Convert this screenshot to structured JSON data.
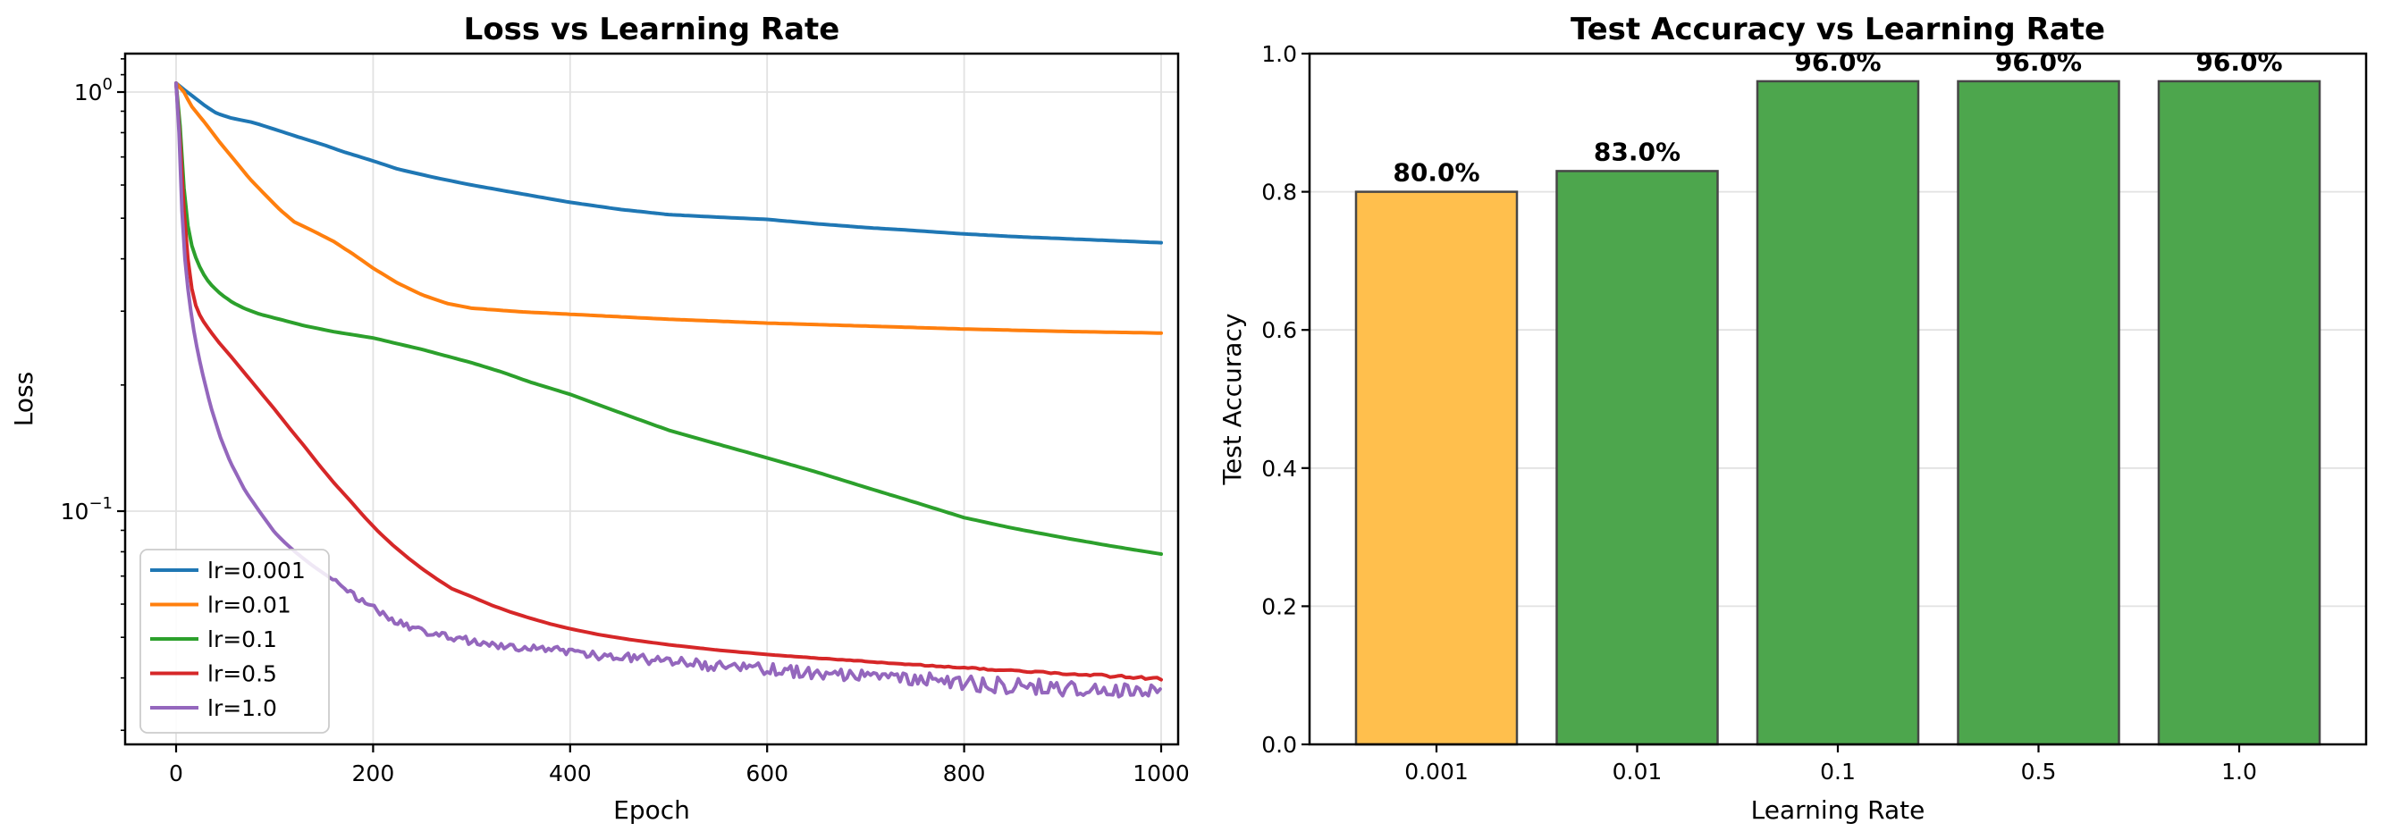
{
  "meta": {
    "background": "#ffffff",
    "text_color": "#000000",
    "grid_color": "#e2e2e2",
    "spine_color": "#000000",
    "legend_border_color": "#cccccc"
  },
  "chart_data": [
    {
      "type": "line",
      "title": "Loss vs Learning Rate",
      "xlabel": "Epoch",
      "ylabel": "Loss",
      "yscale": "log",
      "xlim": [
        -52,
        1017
      ],
      "ylim": [
        0.0277,
        1.224
      ],
      "xticks": [
        0,
        200,
        400,
        600,
        800,
        1000
      ],
      "xtick_labels": [
        "0",
        "200",
        "400",
        "600",
        "800",
        "1000"
      ],
      "yticks": [
        {
          "value": 1.0,
          "base": "10",
          "exp": "0"
        },
        {
          "value": 0.1,
          "base": "10",
          "exp": "−1"
        }
      ],
      "grid": true,
      "legend": {
        "position": "lower-left"
      },
      "series": [
        {
          "name": "lr=0.001",
          "color": "#1f77b4",
          "points": [
            [
              0,
              1.05
            ],
            [
              10,
              1.005
            ],
            [
              20,
              0.965
            ],
            [
              30,
              0.925
            ],
            [
              41,
              0.89
            ],
            [
              55,
              0.868
            ],
            [
              78,
              0.846
            ],
            [
              100,
              0.815
            ],
            [
              125,
              0.78
            ],
            [
              150,
              0.748
            ],
            [
              170,
              0.72
            ],
            [
              200,
              0.685
            ],
            [
              225,
              0.655
            ],
            [
              260,
              0.627
            ],
            [
              300,
              0.6
            ],
            [
              350,
              0.572
            ],
            [
              397,
              0.547
            ],
            [
              450,
              0.525
            ],
            [
              500,
              0.51
            ],
            [
              550,
              0.503
            ],
            [
              599,
              0.497
            ],
            [
              650,
              0.485
            ],
            [
              700,
              0.475
            ],
            [
              745,
              0.468
            ],
            [
              791,
              0.46
            ],
            [
              850,
              0.452
            ],
            [
              900,
              0.447
            ],
            [
              950,
              0.442
            ],
            [
              1000,
              0.437
            ]
          ]
        },
        {
          "name": "lr=0.01",
          "color": "#ff7f0e",
          "points": [
            [
              0,
              1.05
            ],
            [
              8,
              1.0
            ],
            [
              15,
              0.93
            ],
            [
              30,
              0.84
            ],
            [
              45,
              0.755
            ],
            [
              60,
              0.685
            ],
            [
              75,
              0.62
            ],
            [
              90,
              0.57
            ],
            [
              105,
              0.525
            ],
            [
              120,
              0.49
            ],
            [
              140,
              0.465
            ],
            [
              160,
              0.44
            ],
            [
              180,
              0.41
            ],
            [
              200,
              0.38
            ],
            [
              225,
              0.35
            ],
            [
              250,
              0.328
            ],
            [
              275,
              0.313
            ],
            [
              300,
              0.305
            ],
            [
              350,
              0.299
            ],
            [
              400,
              0.295
            ],
            [
              500,
              0.287
            ],
            [
              600,
              0.281
            ],
            [
              700,
              0.2765
            ],
            [
              800,
              0.272
            ],
            [
              900,
              0.2685
            ],
            [
              1000,
              0.266
            ]
          ]
        },
        {
          "name": "lr=0.1",
          "color": "#2ca02c",
          "points": [
            [
              0,
              1.05
            ],
            [
              3,
              0.92
            ],
            [
              6,
              0.68
            ],
            [
              9,
              0.55
            ],
            [
              12,
              0.48
            ],
            [
              16,
              0.43
            ],
            [
              20,
              0.403
            ],
            [
              25,
              0.378
            ],
            [
              30,
              0.36
            ],
            [
              36,
              0.346
            ],
            [
              45,
              0.33
            ],
            [
              57,
              0.315
            ],
            [
              70,
              0.304
            ],
            [
              85,
              0.295
            ],
            [
              105,
              0.287
            ],
            [
              130,
              0.277
            ],
            [
              160,
              0.268
            ],
            [
              200,
              0.259
            ],
            [
              250,
              0.243
            ],
            [
              300,
              0.226
            ],
            [
              330,
              0.215
            ],
            [
              360,
              0.203
            ],
            [
              400,
              0.19
            ],
            [
              450,
              0.172
            ],
            [
              500,
              0.156
            ],
            [
              550,
              0.1445
            ],
            [
              600,
              0.134
            ],
            [
              650,
              0.124
            ],
            [
              700,
              0.114
            ],
            [
              750,
              0.105
            ],
            [
              800,
              0.0965
            ],
            [
              850,
              0.091
            ],
            [
              900,
              0.0865
            ],
            [
              950,
              0.0825
            ],
            [
              1000,
              0.079
            ]
          ]
        },
        {
          "name": "lr=0.5",
          "color": "#d62728",
          "noise": {
            "start": 600,
            "base_amp": 0.0,
            "max_amp": 0.007
          },
          "points": [
            [
              0,
              1.05
            ],
            [
              3,
              0.85
            ],
            [
              6,
              0.62
            ],
            [
              9,
              0.48
            ],
            [
              12,
              0.4
            ],
            [
              15,
              0.35
            ],
            [
              18,
              0.32
            ],
            [
              22,
              0.3
            ],
            [
              27,
              0.285
            ],
            [
              35,
              0.268
            ],
            [
              45,
              0.25
            ],
            [
              55,
              0.235
            ],
            [
              70,
              0.213
            ],
            [
              85,
              0.193
            ],
            [
              100,
              0.175
            ],
            [
              115,
              0.158
            ],
            [
              130,
              0.143
            ],
            [
              145,
              0.129
            ],
            [
              160,
              0.117
            ],
            [
              175,
              0.107
            ],
            [
              190,
              0.0975
            ],
            [
              205,
              0.0895
            ],
            [
              220,
              0.083
            ],
            [
              235,
              0.0775
            ],
            [
              250,
              0.0728
            ],
            [
              265,
              0.0688
            ],
            [
              280,
              0.0653
            ],
            [
              300,
              0.0625
            ],
            [
              320,
              0.0597
            ],
            [
              340,
              0.0574
            ],
            [
              360,
              0.0555
            ],
            [
              380,
              0.0538
            ],
            [
              400,
              0.0524
            ],
            [
              430,
              0.0507
            ],
            [
              460,
              0.0494
            ],
            [
              500,
              0.048
            ],
            [
              550,
              0.0466
            ],
            [
              600,
              0.0455
            ],
            [
              650,
              0.0446
            ],
            [
              700,
              0.0438
            ],
            [
              750,
              0.043
            ],
            [
              800,
              0.0423
            ],
            [
              850,
              0.0416
            ],
            [
              900,
              0.041
            ],
            [
              950,
              0.0404
            ],
            [
              1000,
              0.0398
            ]
          ]
        },
        {
          "name": "lr=1.0",
          "color": "#9467bd",
          "noise": {
            "start": 160,
            "base_amp": 0.016,
            "max_amp": 0.05
          },
          "points": [
            [
              0,
              1.05
            ],
            [
              3,
              0.8
            ],
            [
              6,
              0.52
            ],
            [
              9,
              0.4
            ],
            [
              12,
              0.34
            ],
            [
              15,
              0.3
            ],
            [
              18,
              0.27
            ],
            [
              22,
              0.24
            ],
            [
              27,
              0.212
            ],
            [
              35,
              0.178
            ],
            [
              45,
              0.15
            ],
            [
              55,
              0.131
            ],
            [
              70,
              0.112
            ],
            [
              85,
              0.0995
            ],
            [
              100,
              0.089
            ],
            [
              110,
              0.0843
            ],
            [
              120,
              0.0803
            ],
            [
              130,
              0.0768
            ],
            [
              140,
              0.0737
            ],
            [
              150,
              0.071
            ],
            [
              160,
              0.0684
            ],
            [
              170,
              0.0658
            ],
            [
              180,
              0.0632
            ],
            [
              190,
              0.0608
            ],
            [
              210,
              0.0568
            ],
            [
              230,
              0.0537
            ],
            [
              250,
              0.0517
            ],
            [
              270,
              0.0503
            ],
            [
              300,
              0.049
            ],
            [
              330,
              0.048
            ],
            [
              360,
              0.047
            ],
            [
              400,
              0.046
            ],
            [
              450,
              0.0448
            ],
            [
              500,
              0.0438
            ],
            [
              550,
              0.0428
            ],
            [
              600,
              0.042
            ],
            [
              650,
              0.0412
            ],
            [
              700,
              0.0405
            ],
            [
              750,
              0.0398
            ],
            [
              800,
              0.039
            ],
            [
              850,
              0.0383
            ],
            [
              900,
              0.0377
            ],
            [
              950,
              0.0371
            ],
            [
              1000,
              0.0365
            ]
          ]
        }
      ]
    },
    {
      "type": "bar",
      "title": "Test Accuracy vs Learning Rate",
      "xlabel": "Learning Rate",
      "ylabel": "Test Accuracy",
      "categories": [
        "0.001",
        "0.01",
        "0.1",
        "0.5",
        "1.0"
      ],
      "values": [
        0.8,
        0.83,
        0.96,
        0.96,
        0.96
      ],
      "bar_labels": [
        "80.0%",
        "83.0%",
        "96.0%",
        "96.0%",
        "96.0%"
      ],
      "bar_colors": [
        "#ffbf4d",
        "#4da64d",
        "#4da64d",
        "#4da64d",
        "#4da64d"
      ],
      "bar_edge_color": "#474747",
      "ylim": [
        0,
        1.0
      ],
      "yticks": [
        0,
        0.2,
        0.4,
        0.6,
        0.8,
        1.0
      ],
      "ytick_labels": [
        "0.0",
        "0.2",
        "0.4",
        "0.6",
        "0.8",
        "1.0"
      ],
      "grid": "y"
    }
  ]
}
